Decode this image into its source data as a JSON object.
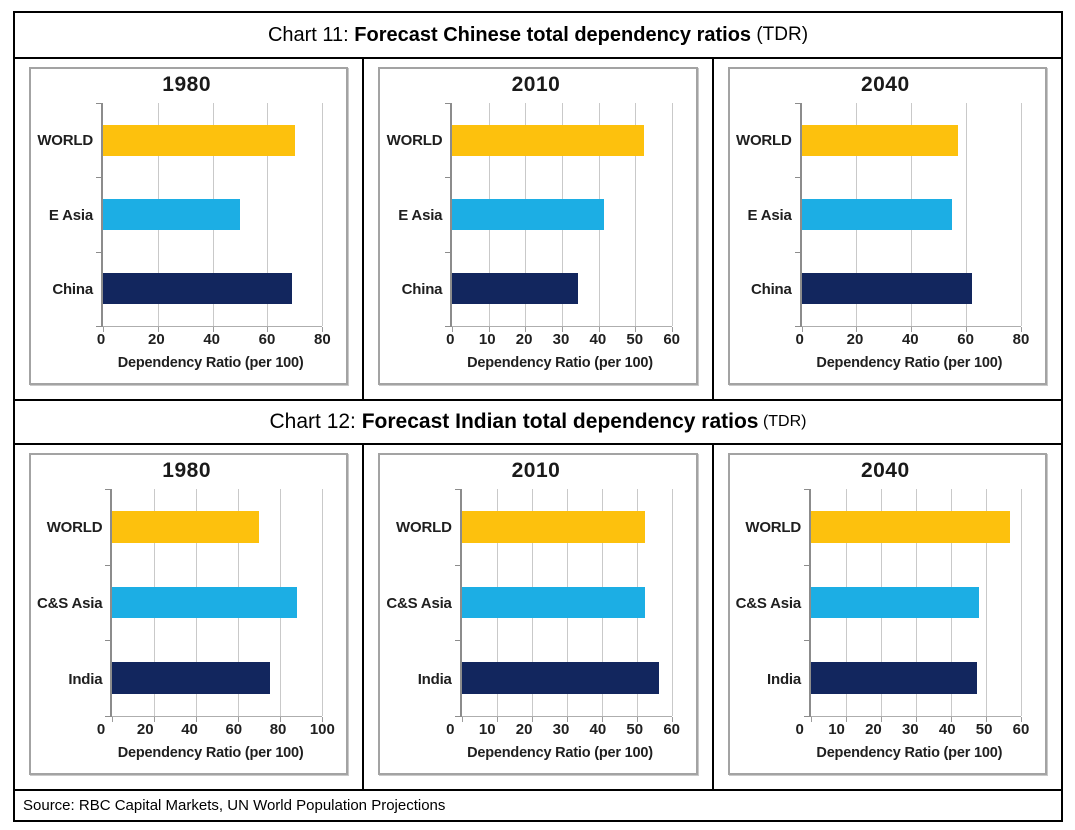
{
  "colors": {
    "world_bar": "#FDC10D",
    "asia_bar": "#1CAEE4",
    "country_bar": "#12265E",
    "gridline": "#c9c9c9",
    "axis_line": "#8c8c8c",
    "panel_border": "#a3a3a3"
  },
  "sections": [
    {
      "title_prefix": "Chart 11: ",
      "title_main": "Forecast Chinese total dependency ratios",
      "title_suffix": " (TDR)",
      "chart_indices": [
        0,
        1,
        2
      ]
    },
    {
      "title_prefix": "Chart 12: ",
      "title_main": "Forecast Indian total dependency ratios",
      "title_suffix": " (TDR)",
      "chart_indices": [
        3,
        4,
        5
      ]
    }
  ],
  "chart_data": [
    {
      "type": "bar",
      "orientation": "horizontal",
      "title": "1980",
      "categories": [
        "WORLD",
        "E Asia",
        "China"
      ],
      "values": [
        70,
        50,
        69
      ],
      "bar_colors": [
        "#FDC10D",
        "#1CAEE4",
        "#12265E"
      ],
      "xlabel": "Dependency Ratio (per 100)",
      "xlim": [
        0,
        80
      ],
      "xticks": [
        0,
        20,
        40,
        60,
        80
      ],
      "grid": true,
      "legend": false
    },
    {
      "type": "bar",
      "orientation": "horizontal",
      "title": "2010",
      "categories": [
        "WORLD",
        "E Asia",
        "China"
      ],
      "values": [
        52.5,
        41.5,
        34.5
      ],
      "bar_colors": [
        "#FDC10D",
        "#1CAEE4",
        "#12265E"
      ],
      "xlabel": "Dependency Ratio (per 100)",
      "xlim": [
        0,
        60
      ],
      "xticks": [
        0,
        10,
        20,
        30,
        40,
        50,
        60
      ],
      "grid": true,
      "legend": false
    },
    {
      "type": "bar",
      "orientation": "horizontal",
      "title": "2040",
      "categories": [
        "WORLD",
        "E Asia",
        "China"
      ],
      "values": [
        57,
        55,
        62
      ],
      "bar_colors": [
        "#FDC10D",
        "#1CAEE4",
        "#12265E"
      ],
      "xlabel": "Dependency Ratio (per 100)",
      "xlim": [
        0,
        80
      ],
      "xticks": [
        0,
        20,
        40,
        60,
        80
      ],
      "grid": true,
      "legend": false
    },
    {
      "type": "bar",
      "orientation": "horizontal",
      "title": "1980",
      "categories": [
        "WORLD",
        "C&S Asia",
        "India"
      ],
      "values": [
        70,
        88,
        75
      ],
      "bar_colors": [
        "#FDC10D",
        "#1CAEE4",
        "#12265E"
      ],
      "xlabel": "Dependency Ratio (per 100)",
      "xlim": [
        0,
        100
      ],
      "xticks": [
        0,
        20,
        40,
        60,
        80,
        100
      ],
      "grid": true,
      "legend": false
    },
    {
      "type": "bar",
      "orientation": "horizontal",
      "title": "2010",
      "categories": [
        "WORLD",
        "C&S Asia",
        "India"
      ],
      "values": [
        52.5,
        52.5,
        56.5
      ],
      "bar_colors": [
        "#FDC10D",
        "#1CAEE4",
        "#12265E"
      ],
      "xlabel": "Dependency Ratio (per 100)",
      "xlim": [
        0,
        60
      ],
      "xticks": [
        0,
        10,
        20,
        30,
        40,
        50,
        60
      ],
      "grid": true,
      "legend": false
    },
    {
      "type": "bar",
      "orientation": "horizontal",
      "title": "2040",
      "categories": [
        "WORLD",
        "C&S Asia",
        "India"
      ],
      "values": [
        57,
        48,
        47.5
      ],
      "bar_colors": [
        "#FDC10D",
        "#1CAEE4",
        "#12265E"
      ],
      "xlabel": "Dependency Ratio (per 100)",
      "xlim": [
        0,
        60
      ],
      "xticks": [
        0,
        10,
        20,
        30,
        40,
        50,
        60
      ],
      "grid": true,
      "legend": false
    }
  ],
  "footer": {
    "source": "Source: RBC Capital Markets, UN World Population Projections"
  }
}
